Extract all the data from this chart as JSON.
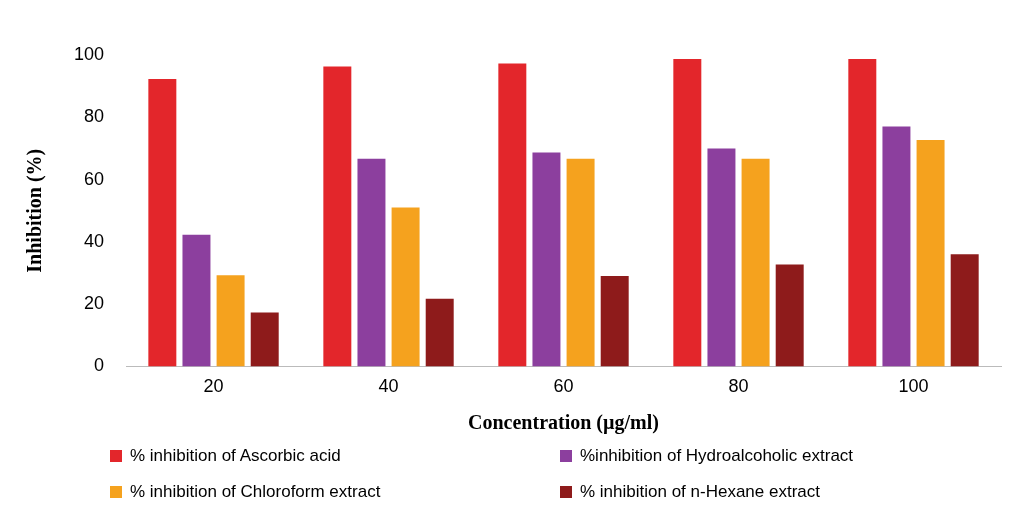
{
  "chart_data": {
    "type": "bar",
    "xlabel": "Concentration (µg/ml)",
    "ylabel": "Inhibition (%)",
    "categories": [
      "20",
      "40",
      "60",
      "80",
      "100"
    ],
    "series": [
      {
        "name": "% inhibition of Ascorbic acid",
        "color": "#e3262b",
        "values": [
          92.3,
          96.3,
          97.3,
          98.7,
          98.7
        ]
      },
      {
        "name": "%inhibition of Hydroalcoholic extract",
        "color": "#8c3f9e",
        "values": [
          42.3,
          66.7,
          68.7,
          70,
          77
        ]
      },
      {
        "name": "% inhibition of Chloroform extract",
        "color": "#f5a21e",
        "values": [
          29.3,
          51,
          66.7,
          66.7,
          72.7
        ]
      },
      {
        "name": "% inhibition of n-Hexane extract",
        "color": "#8e1b1b",
        "values": [
          17.3,
          21.7,
          29,
          32.7,
          36
        ]
      }
    ],
    "ylim": [
      0,
      100
    ],
    "yticks": [
      0,
      20,
      40,
      60,
      80,
      100
    ],
    "grid": false,
    "legend": "bottom"
  }
}
